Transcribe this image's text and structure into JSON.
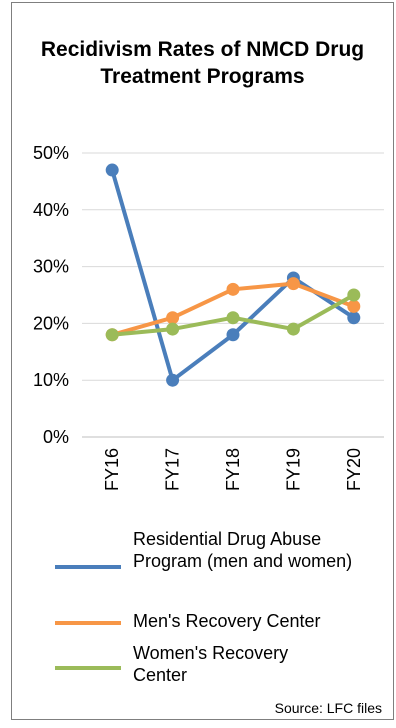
{
  "chart_data": {
    "type": "line",
    "title": "Recidivism Rates of NMCD Drug Treatment Programs",
    "categories": [
      "FY16",
      "FY17",
      "FY18",
      "FY19",
      "FY20"
    ],
    "yticks": [
      "0%",
      "10%",
      "20%",
      "30%",
      "40%",
      "50%"
    ],
    "ylim": [
      0,
      50
    ],
    "grid": true,
    "legend_position": "bottom",
    "series": [
      {
        "name": "Residential Drug Abuse Program (men and women)",
        "color": "#4a7ebb",
        "values": [
          47,
          10,
          18,
          28,
          21
        ]
      },
      {
        "name": "Men's Recovery Center",
        "color": "#f79646",
        "values": [
          18,
          21,
          26,
          27,
          23
        ]
      },
      {
        "name": "Women's Recovery Center",
        "color": "#9bbb59",
        "values": [
          18,
          19,
          21,
          19,
          25
        ]
      }
    ],
    "source": "Source: LFC files"
  }
}
